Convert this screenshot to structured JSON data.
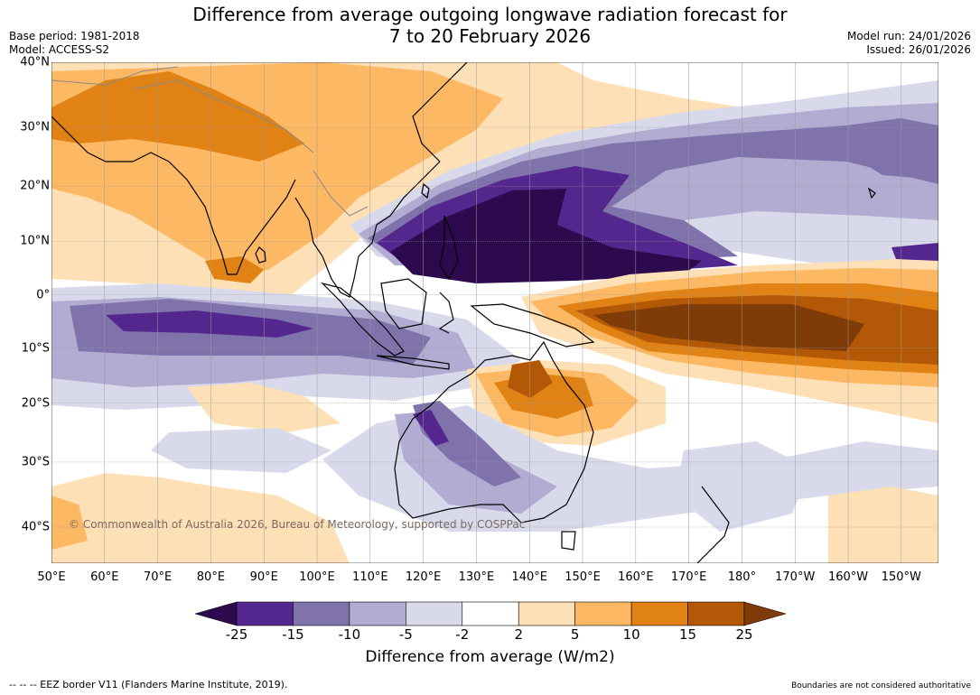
{
  "header": {
    "title_line1": "Difference from average outgoing longwave radiation forecast for",
    "title_line2": "7 to 20 February 2026",
    "base_period": "Base period: 1981-2018",
    "model": "Model: ACCESS-S2",
    "model_run": "Model run: 24/01/2026",
    "issued": "Issued: 26/01/2026"
  },
  "map": {
    "lat_labels": [
      "40°N",
      "30°N",
      "20°N",
      "10°N",
      "0°",
      "10°S",
      "20°S",
      "30°S",
      "40°S"
    ],
    "lat_values": [
      40,
      30,
      20,
      10,
      0,
      -10,
      -20,
      -30,
      -40
    ],
    "lon_labels": [
      "50°E",
      "60°E",
      "70°E",
      "80°E",
      "90°E",
      "100°E",
      "110°E",
      "120°E",
      "130°E",
      "140°E",
      "150°E",
      "160°E",
      "170°E",
      "180°",
      "170°W",
      "160°W",
      "150°W"
    ],
    "lon_values": [
      50,
      60,
      70,
      80,
      90,
      100,
      110,
      120,
      130,
      140,
      150,
      160,
      170,
      180,
      190,
      200,
      210
    ],
    "extent": {
      "lon_min": 50,
      "lon_max": 217,
      "lat_min": -45,
      "lat_max": 40
    },
    "copyright": "© Commonwealth of Australia 2026, Bureau of Meteorology, supported by COSPPac"
  },
  "colorbar": {
    "ticks": [
      "-25",
      "-15",
      "-10",
      "-5",
      "-2",
      "2",
      "5",
      "10",
      "15",
      "25"
    ],
    "colors": [
      "#2d0a4e",
      "#54278f",
      "#8073ac",
      "#b2abd2",
      "#d8daeb",
      "#ffffff",
      "#fee0b6",
      "#fdb863",
      "#e08214",
      "#b35806",
      "#7f3b08"
    ],
    "title": "Difference from average (W/m2)"
  },
  "footer": {
    "eez_note": "--  --  -- EEZ border V11 (Flanders Marine Institute, 2019).",
    "disclaimer": "Boundaries are not considered authoritative"
  }
}
